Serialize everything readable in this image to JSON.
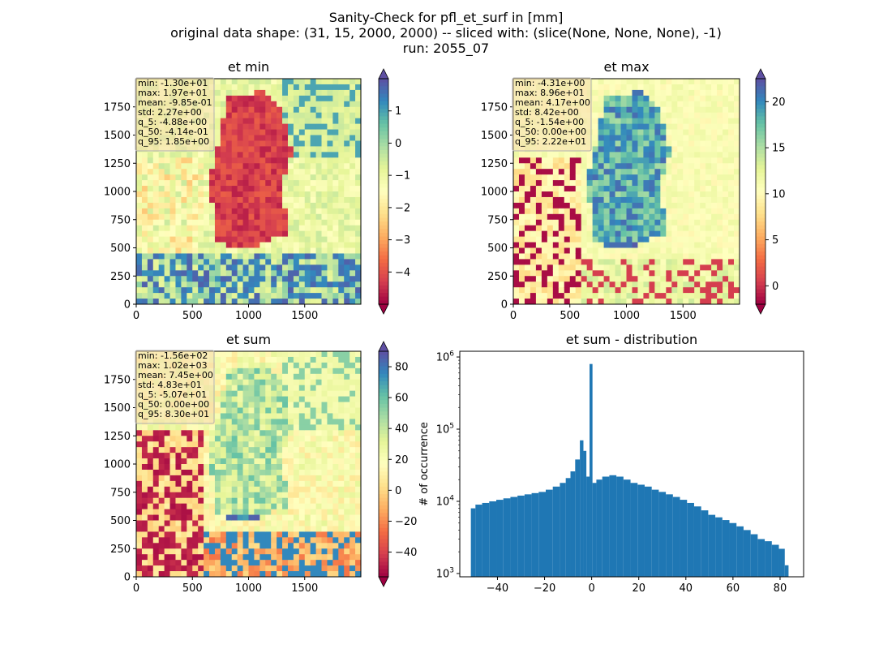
{
  "suptitle": [
    "Sanity-Check for pfl_et_surf in [mm]",
    "original data shape: (31, 15, 2000, 2000) -- sliced with: (slice(None, None, None), -1)",
    "run: 2055_07"
  ],
  "chart_data": [
    {
      "type": "heatmap",
      "title": "et min",
      "xlim": [
        0,
        2000
      ],
      "ylim": [
        0,
        2000
      ],
      "x_ticks": [
        0,
        500,
        1000,
        1500
      ],
      "y_ticks": [
        0,
        250,
        500,
        750,
        1000,
        1250,
        1500,
        1750
      ],
      "colorbar": {
        "cmap": "Spectral",
        "range": [
          -5,
          2
        ],
        "ticks": [
          "1",
          "0",
          "−1",
          "−2",
          "−3",
          "−4"
        ],
        "tick_values": [
          1,
          0,
          -1,
          -2,
          -3,
          -4
        ],
        "extend": "both"
      },
      "stats": [
        "min: -1.30e+01",
        "max: 1.97e+01",
        "mean: -9.85e-01",
        "std: 2.27e+00",
        "q_5: -4.88e+00",
        "q_50: -4.14e-01",
        "q_95: 1.85e+00"
      ]
    },
    {
      "type": "heatmap",
      "title": "et max",
      "xlim": [
        0,
        2000
      ],
      "ylim": [
        0,
        2000
      ],
      "x_ticks": [
        0,
        500,
        1000,
        1500
      ],
      "y_ticks": [
        0,
        250,
        500,
        750,
        1000,
        1250,
        1500,
        1750
      ],
      "colorbar": {
        "cmap": "Spectral",
        "range": [
          -2,
          22.5
        ],
        "ticks": [
          "20",
          "15",
          "10",
          "5",
          "0"
        ],
        "tick_values": [
          20,
          15,
          10,
          5,
          0
        ],
        "extend": "both"
      },
      "stats": [
        "min: -4.31e+00",
        "max: 8.96e+01",
        "mean: 4.17e+00",
        "std: 8.42e+00",
        "q_5: -1.54e+00",
        "q_50: 0.00e+00",
        "q_95: 2.22e+01"
      ]
    },
    {
      "type": "heatmap",
      "title": "et sum",
      "xlim": [
        0,
        2000
      ],
      "ylim": [
        0,
        2000
      ],
      "x_ticks": [
        0,
        500,
        1000,
        1500
      ],
      "y_ticks": [
        0,
        250,
        500,
        750,
        1000,
        1250,
        1500,
        1750
      ],
      "colorbar": {
        "cmap": "Spectral",
        "range": [
          -56,
          90
        ],
        "ticks": [
          "80",
          "60",
          "40",
          "20",
          "0",
          "−20",
          "−40"
        ],
        "tick_values": [
          80,
          60,
          40,
          20,
          0,
          -20,
          -40
        ],
        "extend": "both"
      },
      "stats": [
        "min: -1.56e+02",
        "max: 1.02e+03",
        "mean: 7.45e+00",
        "std: 4.83e+01",
        "q_5: -5.07e+01",
        "q_50: 0.00e+00",
        "q_95: 8.30e+01"
      ]
    },
    {
      "type": "bar",
      "title": "et sum - distribution",
      "ylabel": "# of occurrence",
      "yscale": "log",
      "xlim": [
        -56,
        90
      ],
      "ylim": [
        900,
        1200000
      ],
      "x_ticks": [
        "−40",
        "−20",
        "0",
        "20",
        "40",
        "60",
        "80"
      ],
      "x_tick_values": [
        -40,
        -20,
        0,
        20,
        40,
        60,
        80
      ],
      "y_ticks": [
        1000,
        10000,
        100000,
        1000000
      ],
      "color": "#1f77b4",
      "bins": [
        {
          "x": -50.7,
          "y": 8000
        },
        {
          "x": -48,
          "y": 9000
        },
        {
          "x": -45,
          "y": 9500
        },
        {
          "x": -42,
          "y": 10000
        },
        {
          "x": -39,
          "y": 10500
        },
        {
          "x": -36,
          "y": 11000
        },
        {
          "x": -33,
          "y": 11500
        },
        {
          "x": -30,
          "y": 12000
        },
        {
          "x": -27,
          "y": 12500
        },
        {
          "x": -24,
          "y": 13000
        },
        {
          "x": -21,
          "y": 13500
        },
        {
          "x": -18,
          "y": 14500
        },
        {
          "x": -15,
          "y": 16000
        },
        {
          "x": -12,
          "y": 18000
        },
        {
          "x": -10,
          "y": 21000
        },
        {
          "x": -8,
          "y": 26000
        },
        {
          "x": -6,
          "y": 38000
        },
        {
          "x": -4,
          "y": 70000
        },
        {
          "x": -3,
          "y": 50000
        },
        {
          "x": -1.5,
          "y": 22000
        },
        {
          "x": -0.3,
          "y": 800000
        },
        {
          "x": 1,
          "y": 18000
        },
        {
          "x": 3,
          "y": 20000
        },
        {
          "x": 6,
          "y": 22000
        },
        {
          "x": 9,
          "y": 23000
        },
        {
          "x": 12,
          "y": 22000
        },
        {
          "x": 15,
          "y": 20000
        },
        {
          "x": 18,
          "y": 18000
        },
        {
          "x": 21,
          "y": 17000
        },
        {
          "x": 24,
          "y": 16000
        },
        {
          "x": 27,
          "y": 14500
        },
        {
          "x": 30,
          "y": 13500
        },
        {
          "x": 33,
          "y": 12500
        },
        {
          "x": 36,
          "y": 11500
        },
        {
          "x": 39,
          "y": 10500
        },
        {
          "x": 42,
          "y": 9500
        },
        {
          "x": 45,
          "y": 8500
        },
        {
          "x": 48,
          "y": 7500
        },
        {
          "x": 51,
          "y": 6500
        },
        {
          "x": 54,
          "y": 6000
        },
        {
          "x": 57,
          "y": 5500
        },
        {
          "x": 60,
          "y": 5000
        },
        {
          "x": 63,
          "y": 4500
        },
        {
          "x": 66,
          "y": 4000
        },
        {
          "x": 69,
          "y": 3500
        },
        {
          "x": 72,
          "y": 3000
        },
        {
          "x": 75,
          "y": 2800
        },
        {
          "x": 78,
          "y": 2500
        },
        {
          "x": 81,
          "y": 2200
        },
        {
          "x": 83,
          "y": 1300
        }
      ]
    }
  ]
}
